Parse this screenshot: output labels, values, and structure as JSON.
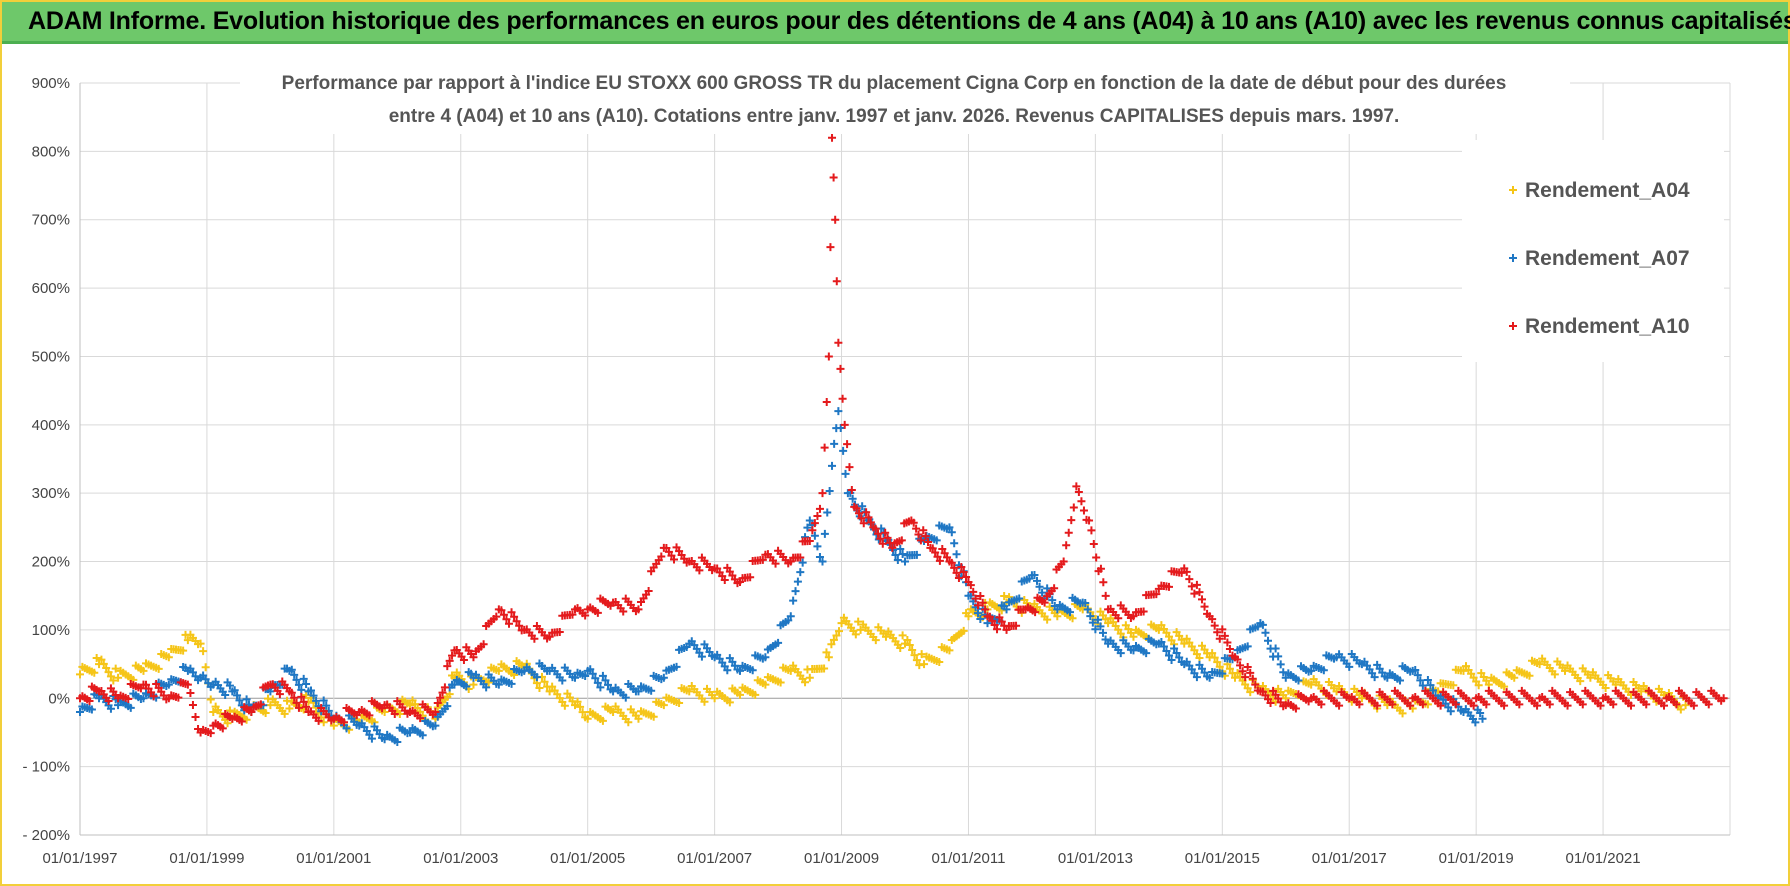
{
  "header": {
    "title": "ADAM Informe. Evolution historique des performances en euros pour des détentions de 4 ans (A04) à 10 ans (A10) avec les revenus connus capitalisés"
  },
  "chart_data": {
    "type": "scatter",
    "title_line1": "Performance par rapport à l'indice EU STOXX 600 GROSS TR  du placement Cigna Corp en fonction de la date de début pour des durées",
    "title_line2": "entre 4 (A04) et 10 ans (A10). Cotations entre janv. 1997 et janv. 2026. Revenus CAPITALISES depuis mars. 1997.",
    "xlabel": "",
    "ylabel": "",
    "xlim": [
      1997.0,
      2023.0
    ],
    "ylim": [
      -200,
      900
    ],
    "y_ticks": [
      {
        "value": 900,
        "label": "900%"
      },
      {
        "value": 800,
        "label": "800%"
      },
      {
        "value": 700,
        "label": "700%"
      },
      {
        "value": 600,
        "label": "600%"
      },
      {
        "value": 500,
        "label": "500%"
      },
      {
        "value": 400,
        "label": "400%"
      },
      {
        "value": 300,
        "label": "300%"
      },
      {
        "value": 200,
        "label": "200%"
      },
      {
        "value": 100,
        "label": "100%"
      },
      {
        "value": 0,
        "label": "0%"
      },
      {
        "value": -100,
        "label": "- 100%"
      },
      {
        "value": -200,
        "label": "- 200%"
      }
    ],
    "x_ticks": [
      {
        "value": 1997,
        "label": "01/01/1997"
      },
      {
        "value": 1999,
        "label": "01/01/1999"
      },
      {
        "value": 2001,
        "label": "01/01/2001"
      },
      {
        "value": 2003,
        "label": "01/01/2003"
      },
      {
        "value": 2005,
        "label": "01/01/2005"
      },
      {
        "value": 2007,
        "label": "01/01/2007"
      },
      {
        "value": 2009,
        "label": "01/01/2009"
      },
      {
        "value": 2011,
        "label": "01/01/2011"
      },
      {
        "value": 2013,
        "label": "01/01/2013"
      },
      {
        "value": 2015,
        "label": "01/01/2015"
      },
      {
        "value": 2017,
        "label": "01/01/2017"
      },
      {
        "value": 2019,
        "label": "01/01/2019"
      },
      {
        "value": 2021,
        "label": "01/01/2021"
      }
    ],
    "grid": true,
    "legend_position": "top-right",
    "series": [
      {
        "name": "Rendement_A04",
        "color": "#f5c518",
        "points": [
          [
            1997.0,
            35
          ],
          [
            1997.3,
            50
          ],
          [
            1997.6,
            30
          ],
          [
            1998.0,
            40
          ],
          [
            1998.4,
            60
          ],
          [
            1998.7,
            85
          ],
          [
            1998.9,
            80
          ],
          [
            1999.1,
            -20
          ],
          [
            1999.4,
            -30
          ],
          [
            1999.7,
            -20
          ],
          [
            2000.0,
            -10
          ],
          [
            2000.3,
            -15
          ],
          [
            2000.6,
            -5
          ],
          [
            2001.0,
            -40
          ],
          [
            2001.4,
            -35
          ],
          [
            2001.8,
            -20
          ],
          [
            2002.2,
            -10
          ],
          [
            2002.6,
            -30
          ],
          [
            2002.9,
            30
          ],
          [
            2003.2,
            20
          ],
          [
            2003.6,
            40
          ],
          [
            2004.0,
            45
          ],
          [
            2004.4,
            10
          ],
          [
            2004.8,
            -10
          ],
          [
            2005.0,
            -30
          ],
          [
            2005.4,
            -20
          ],
          [
            2005.8,
            -30
          ],
          [
            2006.2,
            -10
          ],
          [
            2006.6,
            10
          ],
          [
            2007.0,
            0
          ],
          [
            2007.4,
            5
          ],
          [
            2007.8,
            20
          ],
          [
            2008.2,
            40
          ],
          [
            2008.5,
            30
          ],
          [
            2008.8,
            60
          ],
          [
            2009.0,
            110
          ],
          [
            2009.3,
            100
          ],
          [
            2009.7,
            90
          ],
          [
            2010.0,
            80
          ],
          [
            2010.3,
            50
          ],
          [
            2010.7,
            70
          ],
          [
            2011.0,
            120
          ],
          [
            2011.3,
            130
          ],
          [
            2011.6,
            140
          ],
          [
            2012.0,
            130
          ],
          [
            2012.4,
            120
          ],
          [
            2012.8,
            130
          ],
          [
            2013.2,
            110
          ],
          [
            2013.6,
            90
          ],
          [
            2014.0,
            100
          ],
          [
            2014.4,
            80
          ],
          [
            2014.8,
            60
          ],
          [
            2015.2,
            30
          ],
          [
            2015.6,
            10
          ],
          [
            2016.0,
            0
          ],
          [
            2016.4,
            20
          ],
          [
            2016.8,
            10
          ],
          [
            2017.2,
            0
          ],
          [
            2017.6,
            -10
          ],
          [
            2018.0,
            -15
          ],
          [
            2018.4,
            10
          ],
          [
            2018.8,
            40
          ],
          [
            2019.2,
            20
          ],
          [
            2019.6,
            30
          ],
          [
            2020.0,
            50
          ],
          [
            2020.4,
            40
          ],
          [
            2020.8,
            30
          ],
          [
            2021.2,
            20
          ],
          [
            2021.6,
            10
          ],
          [
            2022.0,
            0
          ],
          [
            2022.3,
            -10
          ]
        ]
      },
      {
        "name": "Rendement_A07",
        "color": "#1f77c4",
        "points": [
          [
            1997.0,
            -20
          ],
          [
            1997.3,
            0
          ],
          [
            1997.6,
            -10
          ],
          [
            1998.0,
            0
          ],
          [
            1998.4,
            20
          ],
          [
            1998.7,
            40
          ],
          [
            1998.9,
            30
          ],
          [
            1999.1,
            20
          ],
          [
            1999.4,
            10
          ],
          [
            1999.7,
            -20
          ],
          [
            2000.0,
            10
          ],
          [
            2000.3,
            40
          ],
          [
            2000.6,
            10
          ],
          [
            2001.0,
            -30
          ],
          [
            2001.4,
            -40
          ],
          [
            2001.8,
            -60
          ],
          [
            2002.2,
            -50
          ],
          [
            2002.6,
            -40
          ],
          [
            2002.9,
            20
          ],
          [
            2003.2,
            30
          ],
          [
            2003.6,
            20
          ],
          [
            2004.0,
            40
          ],
          [
            2004.4,
            40
          ],
          [
            2004.8,
            30
          ],
          [
            2005.0,
            40
          ],
          [
            2005.4,
            10
          ],
          [
            2005.8,
            10
          ],
          [
            2006.2,
            30
          ],
          [
            2006.6,
            80
          ],
          [
            2007.0,
            60
          ],
          [
            2007.4,
            40
          ],
          [
            2007.8,
            60
          ],
          [
            2008.2,
            120
          ],
          [
            2008.5,
            260
          ],
          [
            2008.7,
            200
          ],
          [
            2008.85,
            340
          ],
          [
            2008.95,
            420
          ],
          [
            2009.1,
            300
          ],
          [
            2009.4,
            260
          ],
          [
            2009.7,
            230
          ],
          [
            2010.0,
            200
          ],
          [
            2010.3,
            230
          ],
          [
            2010.7,
            250
          ],
          [
            2011.0,
            150
          ],
          [
            2011.3,
            110
          ],
          [
            2011.6,
            130
          ],
          [
            2012.0,
            180
          ],
          [
            2012.4,
            130
          ],
          [
            2012.8,
            140
          ],
          [
            2013.2,
            80
          ],
          [
            2013.6,
            70
          ],
          [
            2014.0,
            80
          ],
          [
            2014.4,
            50
          ],
          [
            2014.8,
            30
          ],
          [
            2015.2,
            60
          ],
          [
            2015.6,
            110
          ],
          [
            2016.0,
            30
          ],
          [
            2016.4,
            40
          ],
          [
            2016.8,
            60
          ],
          [
            2017.2,
            50
          ],
          [
            2017.6,
            30
          ],
          [
            2018.0,
            40
          ],
          [
            2018.4,
            0
          ],
          [
            2018.8,
            -20
          ],
          [
            2019.1,
            -30
          ]
        ]
      },
      {
        "name": "Rendement_A10",
        "color": "#e41a1c",
        "points": [
          [
            1997.0,
            0
          ],
          [
            1997.3,
            10
          ],
          [
            1997.6,
            0
          ],
          [
            1998.0,
            20
          ],
          [
            1998.4,
            0
          ],
          [
            1998.7,
            20
          ],
          [
            1998.9,
            -50
          ],
          [
            1999.1,
            -40
          ],
          [
            1999.4,
            -30
          ],
          [
            1999.7,
            -20
          ],
          [
            2000.0,
            20
          ],
          [
            2000.3,
            10
          ],
          [
            2000.6,
            -20
          ],
          [
            2001.0,
            -30
          ],
          [
            2001.4,
            -20
          ],
          [
            2001.8,
            -10
          ],
          [
            2002.2,
            -20
          ],
          [
            2002.6,
            -20
          ],
          [
            2002.9,
            70
          ],
          [
            2003.2,
            60
          ],
          [
            2003.6,
            130
          ],
          [
            2004.0,
            100
          ],
          [
            2004.4,
            90
          ],
          [
            2004.8,
            130
          ],
          [
            2005.0,
            130
          ],
          [
            2005.4,
            140
          ],
          [
            2005.8,
            130
          ],
          [
            2006.2,
            220
          ],
          [
            2006.6,
            200
          ],
          [
            2007.0,
            190
          ],
          [
            2007.4,
            170
          ],
          [
            2007.8,
            210
          ],
          [
            2008.2,
            200
          ],
          [
            2008.5,
            230
          ],
          [
            2008.7,
            300
          ],
          [
            2008.8,
            500
          ],
          [
            2008.85,
            820
          ],
          [
            2008.9,
            700
          ],
          [
            2008.95,
            520
          ],
          [
            2009.05,
            400
          ],
          [
            2009.2,
            280
          ],
          [
            2009.5,
            250
          ],
          [
            2009.8,
            220
          ],
          [
            2010.1,
            260
          ],
          [
            2010.4,
            220
          ],
          [
            2010.7,
            200
          ],
          [
            2011.0,
            170
          ],
          [
            2011.3,
            120
          ],
          [
            2011.6,
            100
          ],
          [
            2011.9,
            130
          ],
          [
            2012.2,
            140
          ],
          [
            2012.5,
            200
          ],
          [
            2012.7,
            310
          ],
          [
            2012.9,
            260
          ],
          [
            2013.2,
            130
          ],
          [
            2013.6,
            120
          ],
          [
            2014.0,
            160
          ],
          [
            2014.4,
            190
          ],
          [
            2014.8,
            120
          ],
          [
            2015.2,
            60
          ],
          [
            2015.6,
            10
          ],
          [
            2016.0,
            -10
          ],
          [
            2016.4,
            0
          ],
          [
            2017.0,
            0
          ],
          [
            2018.0,
            0
          ],
          [
            2019.0,
            0
          ],
          [
            2020.0,
            0
          ],
          [
            2021.0,
            0
          ],
          [
            2022.0,
            0
          ],
          [
            2022.9,
            0
          ]
        ]
      }
    ]
  }
}
